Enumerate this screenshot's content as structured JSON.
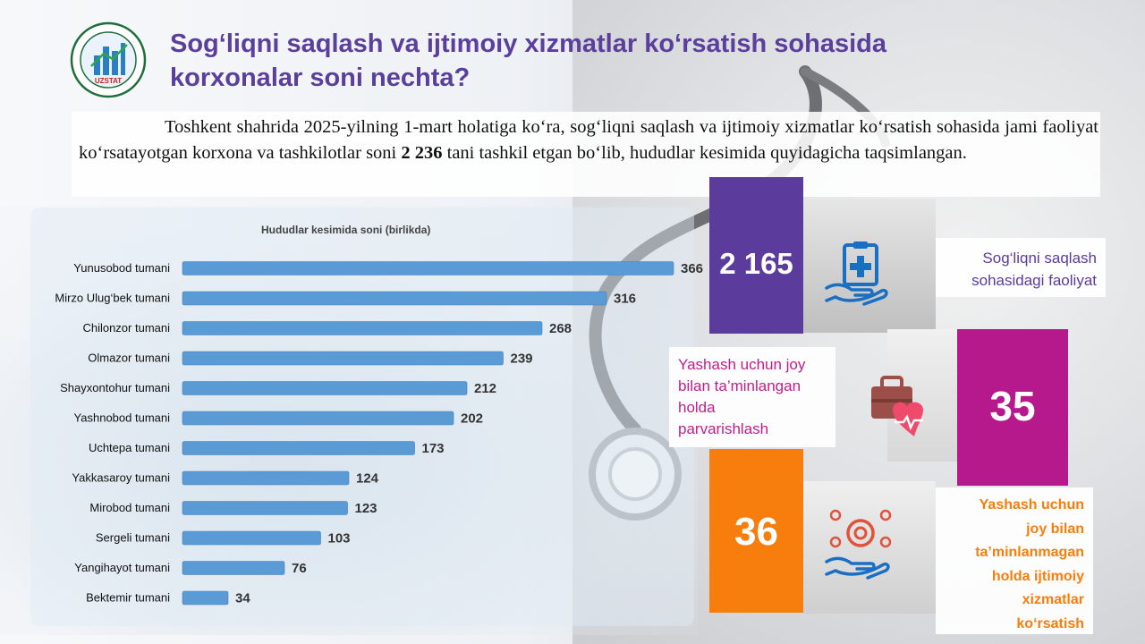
{
  "header": {
    "title_line1": "Sog‘liqni saqlash va ijtimoiy xizmatlar ko‘rsatish sohasida",
    "title_line2": "korxonalar soni nechta?"
  },
  "logo": {
    "icon": "uzstat-logo",
    "label": "UZSTAT"
  },
  "intro": {
    "text_before": "Toshkent shahrida 2025-yilning 1-mart holatiga ko‘ra, sog‘liqni saqlash va ijtimoiy xizmatlar ko‘rsatish sohasida jami faoliyat ko‘rsatayotgan korxona va tashkilotlar soni ",
    "highlight": "2 236",
    "text_after": " tani tashkil etgan bo‘lib, hududlar kesimida quyidagicha taqsimlangan."
  },
  "chart_data": {
    "type": "bar",
    "orientation": "horizontal",
    "title": "Hududlar kesimida soni (birlikda)",
    "categories": [
      "Yunusobod tumani",
      "Mirzo Ulug‘bek tumani",
      "Chilonzor tumani",
      "Olmazor tumani",
      "Shayxontohur tumani",
      "Yashnobod tumani",
      "Uchtepa tumani",
      "Yakkasaroy tumani",
      "Mirobod tumani",
      "Sergeli tumani",
      "Yangihayot tumani",
      "Bektemir tumani"
    ],
    "values": [
      366,
      316,
      268,
      239,
      212,
      202,
      173,
      124,
      123,
      103,
      76,
      34
    ],
    "bar_color": "#5b9bd5",
    "grid": false,
    "legend": "none"
  },
  "infographic": {
    "health": {
      "value": "2 165",
      "label_line1": "Sog‘liqni saqlash",
      "label_line2": "sohasidagi faoliyat",
      "color": "#5b3c9c",
      "icon": "medical-clipboard-hand-icon"
    },
    "care_with_housing": {
      "value": "35",
      "label_line1": "Yashash uchun joy",
      "label_line2": "bilan ta’minlangan",
      "label_line3": "holda",
      "label_line4": "parvarishlash",
      "color": "#b5198c",
      "icon": "medical-bag-heart-icon"
    },
    "social_without_housing": {
      "value": "36",
      "label_line1": "Yashash uchun",
      "label_line2": "joy bilan",
      "label_line3": "ta’minlanmagan",
      "label_line4": "holda ijtimoiy",
      "label_line5": "xizmatlar",
      "label_line6": "ko‘rsatish",
      "color": "#f77d0c",
      "icon": "social-care-hand-icon"
    }
  }
}
